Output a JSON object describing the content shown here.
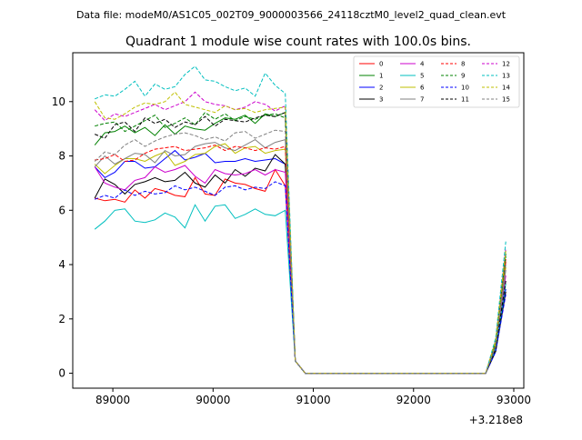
{
  "header": {
    "suptitle": "Data file: modeM0/AS1C05_002T09_9000003566_24118cztM0_level2_quad_clean.evt"
  },
  "chart_data": {
    "type": "line",
    "title": "Quadrant 1 module wise count rates with 100.0s bins.",
    "xlabel": "",
    "ylabel": "",
    "x_offset_label": "+3.218e8",
    "x_offset": 321800000,
    "xlim": [
      88600,
      93100
    ],
    "ylim": [
      -0.55,
      11.8
    ],
    "xticks": [
      89000,
      90000,
      91000,
      92000,
      93000
    ],
    "xtick_labels": [
      "89000",
      "90000",
      "91000",
      "92000",
      "93000"
    ],
    "yticks": [
      0,
      2,
      4,
      6,
      8,
      10
    ],
    "ytick_labels": [
      "0",
      "2",
      "4",
      "6",
      "8",
      "10"
    ],
    "grid": false,
    "legend": "top-right",
    "x": [
      88820,
      88920,
      89020,
      89120,
      89220,
      89320,
      89420,
      89520,
      89620,
      89720,
      89820,
      89920,
      90020,
      90120,
      90220,
      90320,
      90420,
      90520,
      90620,
      90720,
      90820,
      90920,
      91020,
      91120,
      91220,
      91320,
      91420,
      91520,
      91620,
      91720,
      91820,
      91920,
      92020,
      92120,
      92220,
      92320,
      92420,
      92520,
      92620,
      92720,
      92820,
      92920
    ],
    "series": [
      {
        "name": "0",
        "color": "#ff0000",
        "dashed": false,
        "values": [
          6.45,
          6.35,
          6.4,
          6.3,
          6.75,
          6.45,
          6.8,
          6.7,
          6.55,
          6.5,
          7.2,
          6.6,
          6.55,
          7.15,
          7.0,
          6.95,
          6.8,
          6.7,
          7.5,
          6.9,
          0.45,
          0,
          0,
          0,
          0,
          0,
          0,
          0,
          0,
          0,
          0,
          0,
          0,
          0,
          0,
          0,
          0,
          0,
          0,
          0,
          1.0,
          4.1
        ]
      },
      {
        "name": "1",
        "color": "#008000",
        "dashed": false,
        "values": [
          8.4,
          8.85,
          8.9,
          9.1,
          8.85,
          9.05,
          8.75,
          9.15,
          8.8,
          9.1,
          9.0,
          8.95,
          9.2,
          9.4,
          9.35,
          9.5,
          9.2,
          9.55,
          9.45,
          9.6,
          0.45,
          0,
          0,
          0,
          0,
          0,
          0,
          0,
          0,
          0,
          0,
          0,
          0,
          0,
          0,
          0,
          0,
          0,
          0,
          0,
          1.2,
          4.4
        ]
      },
      {
        "name": "2",
        "color": "#0000ff",
        "dashed": false,
        "values": [
          7.6,
          7.2,
          7.4,
          7.8,
          7.8,
          7.55,
          7.6,
          7.9,
          8.2,
          7.85,
          7.95,
          8.1,
          7.75,
          7.8,
          7.8,
          7.9,
          7.8,
          7.85,
          7.9,
          7.7,
          0.45,
          0,
          0,
          0,
          0,
          0,
          0,
          0,
          0,
          0,
          0,
          0,
          0,
          0,
          0,
          0,
          0,
          0,
          0,
          0,
          0.9,
          3.1
        ]
      },
      {
        "name": "3",
        "color": "#000000",
        "dashed": false,
        "values": [
          6.45,
          7.15,
          6.95,
          6.6,
          6.95,
          7.05,
          7.2,
          7.05,
          7.1,
          7.4,
          7.0,
          6.85,
          7.3,
          7.0,
          7.5,
          7.25,
          7.55,
          7.45,
          8.05,
          7.7,
          0.45,
          0,
          0,
          0,
          0,
          0,
          0,
          0,
          0,
          0,
          0,
          0,
          0,
          0,
          0,
          0,
          0,
          0,
          0,
          0,
          0.8,
          3.0
        ]
      },
      {
        "name": "4",
        "color": "#cc00cc",
        "dashed": false,
        "values": [
          7.6,
          7.0,
          6.85,
          6.75,
          7.1,
          7.2,
          7.6,
          7.4,
          7.5,
          7.65,
          7.25,
          7.0,
          7.5,
          7.35,
          7.3,
          7.35,
          7.5,
          7.3,
          7.5,
          7.4,
          0.45,
          0,
          0,
          0,
          0,
          0,
          0,
          0,
          0,
          0,
          0,
          0,
          0,
          0,
          0,
          0,
          0,
          0,
          0,
          0,
          1.0,
          3.6
        ]
      },
      {
        "name": "5",
        "color": "#00bfbf",
        "dashed": false,
        "values": [
          5.3,
          5.6,
          6.0,
          6.05,
          5.6,
          5.55,
          5.65,
          5.9,
          5.75,
          5.35,
          6.2,
          5.6,
          6.15,
          6.2,
          5.7,
          5.85,
          6.05,
          5.85,
          5.8,
          6.0,
          0.45,
          0,
          0,
          0,
          0,
          0,
          0,
          0,
          0,
          0,
          0,
          0,
          0,
          0,
          0,
          0,
          0,
          0,
          0,
          0,
          0.9,
          3.3
        ]
      },
      {
        "name": "6",
        "color": "#bfbf00",
        "dashed": false,
        "values": [
          7.7,
          7.35,
          7.65,
          7.9,
          7.9,
          7.8,
          8.0,
          8.15,
          7.65,
          7.8,
          8.05,
          8.1,
          8.35,
          8.45,
          8.1,
          8.3,
          8.35,
          8.1,
          8.2,
          8.25,
          0.45,
          0,
          0,
          0,
          0,
          0,
          0,
          0,
          0,
          0,
          0,
          0,
          0,
          0,
          0,
          0,
          0,
          0,
          0,
          0,
          1.1,
          3.9
        ]
      },
      {
        "name": "7",
        "color": "#808080",
        "dashed": false,
        "values": [
          7.6,
          8.0,
          7.7,
          7.9,
          8.1,
          8.05,
          7.75,
          8.2,
          8.0,
          8.05,
          8.35,
          8.45,
          8.5,
          8.3,
          8.2,
          8.4,
          8.6,
          8.3,
          8.5,
          8.6,
          0.45,
          0,
          0,
          0,
          0,
          0,
          0,
          0,
          0,
          0,
          0,
          0,
          0,
          0,
          0,
          0,
          0,
          0,
          0,
          0,
          1.0,
          3.8
        ]
      },
      {
        "name": "8",
        "color": "#ff0000",
        "dashed": true,
        "values": [
          7.85,
          7.9,
          8.05,
          7.8,
          7.85,
          8.1,
          8.25,
          8.3,
          8.35,
          8.2,
          8.25,
          8.3,
          8.4,
          8.2,
          8.35,
          8.3,
          8.2,
          8.3,
          8.25,
          8.35,
          0.45,
          0,
          0,
          0,
          0,
          0,
          0,
          0,
          0,
          0,
          0,
          0,
          0,
          0,
          0,
          0,
          0,
          0,
          0,
          0,
          1.0,
          4.2
        ]
      },
      {
        "name": "9",
        "color": "#008000",
        "dashed": true,
        "values": [
          9.1,
          9.2,
          9.25,
          8.9,
          9.1,
          9.3,
          9.5,
          9.05,
          9.2,
          9.4,
          9.15,
          9.6,
          9.35,
          9.55,
          9.3,
          9.45,
          9.35,
          9.5,
          9.55,
          9.4,
          0.45,
          0,
          0,
          0,
          0,
          0,
          0,
          0,
          0,
          0,
          0,
          0,
          0,
          0,
          0,
          0,
          0,
          0,
          0,
          0,
          1.1,
          4.3
        ]
      },
      {
        "name": "10",
        "color": "#0000ff",
        "dashed": true,
        "values": [
          6.4,
          6.55,
          6.45,
          6.75,
          6.55,
          6.7,
          6.6,
          6.65,
          6.9,
          6.75,
          6.85,
          6.7,
          6.55,
          6.85,
          6.9,
          6.75,
          6.85,
          6.8,
          7.05,
          6.9,
          0.45,
          0,
          0,
          0,
          0,
          0,
          0,
          0,
          0,
          0,
          0,
          0,
          0,
          0,
          0,
          0,
          0,
          0,
          0,
          0,
          0.8,
          2.9
        ]
      },
      {
        "name": "11",
        "color": "#000000",
        "dashed": true,
        "values": [
          8.8,
          8.65,
          9.15,
          9.25,
          8.9,
          9.4,
          9.2,
          9.35,
          9.05,
          9.25,
          9.15,
          9.45,
          9.1,
          9.35,
          9.3,
          9.25,
          9.4,
          9.5,
          9.45,
          9.6,
          0.45,
          0,
          0,
          0,
          0,
          0,
          0,
          0,
          0,
          0,
          0,
          0,
          0,
          0,
          0,
          0,
          0,
          0,
          0,
          0,
          0.9,
          3.4
        ]
      },
      {
        "name": "12",
        "color": "#cc00cc",
        "dashed": true,
        "values": [
          9.7,
          9.3,
          9.55,
          9.45,
          9.6,
          9.75,
          9.9,
          9.7,
          9.85,
          10.0,
          10.35,
          10.0,
          9.9,
          9.85,
          9.7,
          9.8,
          10.0,
          9.9,
          9.65,
          9.85,
          0.45,
          0,
          0,
          0,
          0,
          0,
          0,
          0,
          0,
          0,
          0,
          0,
          0,
          0,
          0,
          0,
          0,
          0,
          0,
          0,
          1.2,
          4.6
        ]
      },
      {
        "name": "13",
        "color": "#00bfbf",
        "dashed": true,
        "values": [
          10.1,
          10.25,
          10.2,
          10.45,
          10.75,
          10.2,
          10.65,
          10.45,
          10.55,
          11.0,
          11.3,
          10.8,
          10.75,
          10.55,
          10.4,
          10.5,
          10.2,
          11.05,
          10.6,
          10.3,
          0.45,
          0,
          0,
          0,
          0,
          0,
          0,
          0,
          0,
          0,
          0,
          0,
          0,
          0,
          0,
          0,
          0,
          0,
          0,
          0,
          1.3,
          4.85
        ]
      },
      {
        "name": "14",
        "color": "#bfbf00",
        "dashed": true,
        "values": [
          10.0,
          9.4,
          9.35,
          9.55,
          9.8,
          9.95,
          9.9,
          10.0,
          10.35,
          9.9,
          9.8,
          9.7,
          9.6,
          9.85,
          9.7,
          9.75,
          9.6,
          9.7,
          9.75,
          9.8,
          0.45,
          0,
          0,
          0,
          0,
          0,
          0,
          0,
          0,
          0,
          0,
          0,
          0,
          0,
          0,
          0,
          0,
          0,
          0,
          0,
          1.2,
          4.5
        ]
      },
      {
        "name": "15",
        "color": "#808080",
        "dashed": true,
        "values": [
          7.8,
          8.15,
          8.05,
          8.4,
          8.6,
          8.35,
          8.55,
          8.7,
          8.8,
          8.85,
          8.75,
          8.6,
          8.7,
          8.55,
          8.85,
          8.9,
          8.65,
          8.8,
          8.95,
          8.9,
          0.45,
          0,
          0,
          0,
          0,
          0,
          0,
          0,
          0,
          0,
          0,
          0,
          0,
          0,
          0,
          0,
          0,
          0,
          0,
          0,
          1.0,
          4.0
        ]
      }
    ]
  }
}
